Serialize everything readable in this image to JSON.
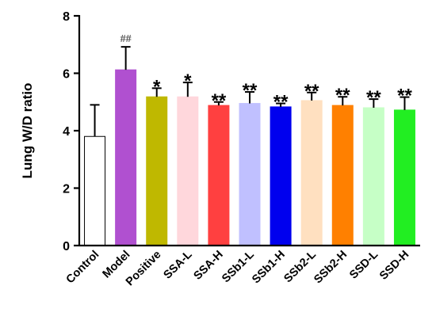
{
  "chart_data": {
    "type": "bar",
    "title": "",
    "xlabel": "",
    "ylabel": "Lung W/D ratio",
    "ylim": [
      0,
      8
    ],
    "yticks": [
      0,
      2,
      4,
      6,
      8
    ],
    "grid": false,
    "categories": [
      "Control",
      "Model",
      "Positive",
      "SSA-L",
      "SSA-H",
      "SSb1-L",
      "SSb1-H",
      "SSb2-L",
      "SSb2-H",
      "SSD-L",
      "SSD-H"
    ],
    "values": [
      3.8,
      6.12,
      5.18,
      5.18,
      4.88,
      4.95,
      4.83,
      5.05,
      4.88,
      4.8,
      4.72
    ],
    "errors": [
      1.1,
      0.8,
      0.3,
      0.5,
      0.12,
      0.4,
      0.12,
      0.28,
      0.3,
      0.3,
      0.45
    ],
    "colors": [
      "#ffffff",
      "#b050d0",
      "#bfb800",
      "#ffd7dc",
      "#ff4040",
      "#c0c0ff",
      "#0000ee",
      "#ffe0c0",
      "#ff8000",
      "#c6ffc6",
      "#22ee22"
    ],
    "annotations": [
      "",
      "##",
      "*",
      "*",
      "**",
      "**",
      "**",
      "**",
      "**",
      "**",
      "**"
    ]
  }
}
